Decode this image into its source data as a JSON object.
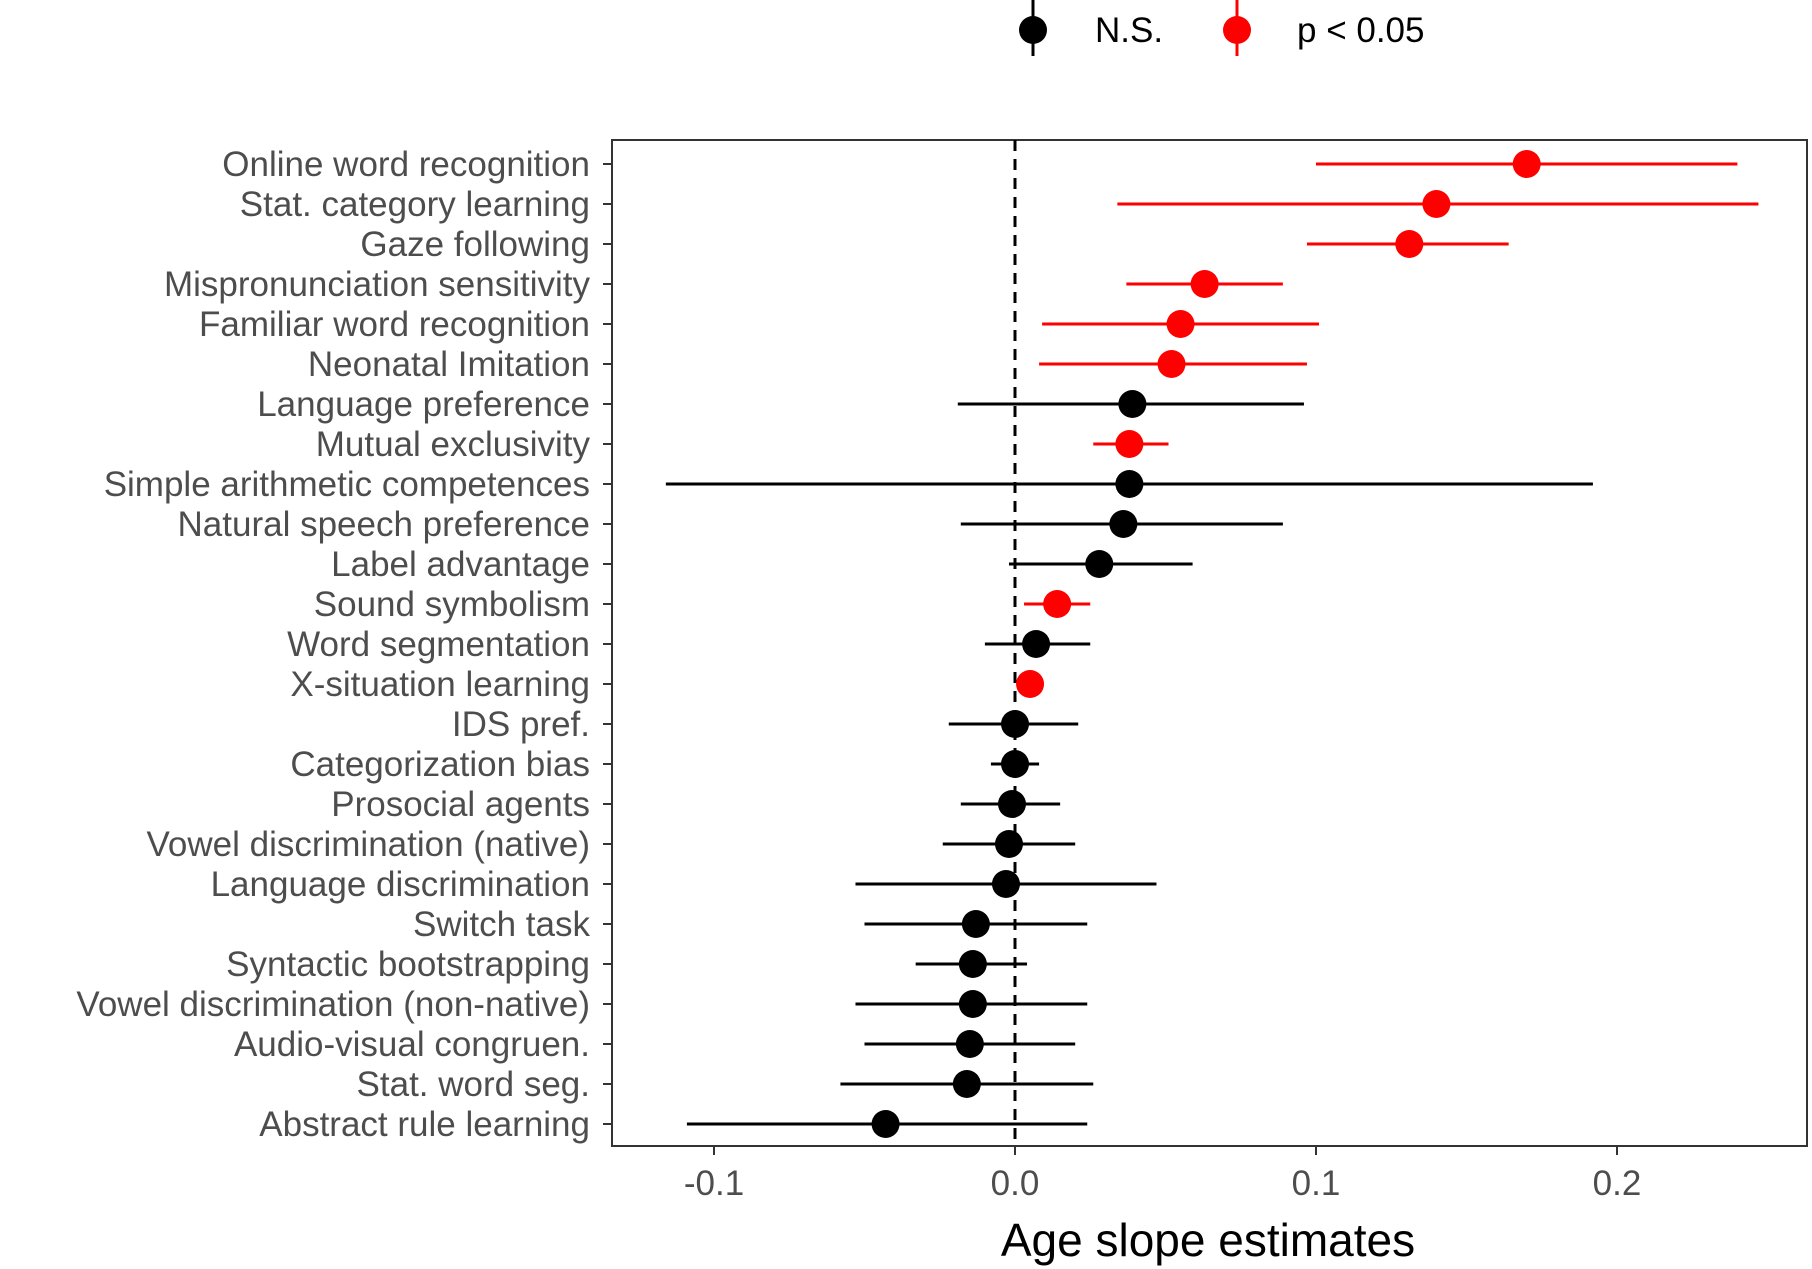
{
  "chart_data": {
    "type": "scatter",
    "subtype": "forest-plot-with-error-bars",
    "xlabel": "Age slope estimates",
    "ylabel": "",
    "xlim": [
      -0.135,
      0.265
    ],
    "x_ticks": [
      -0.1,
      0.0,
      0.1,
      0.2
    ],
    "x_tick_labels": [
      "-0.1",
      "0.0",
      "0.1",
      "0.2"
    ],
    "reference_line": {
      "x": 0.0,
      "style": "dashed",
      "color": "#000000"
    },
    "grid": false,
    "legend": {
      "position": "top-center",
      "items": [
        {
          "key": "ns",
          "label": "N.S.",
          "color": "#000000"
        },
        {
          "key": "sig",
          "label": "p < 0.05",
          "color": "#ff0000"
        }
      ]
    },
    "colors": {
      "ns": "#000000",
      "sig": "#ff0000"
    },
    "rows": [
      {
        "label": "Online word recognition",
        "estimate": 0.17,
        "ci_low": 0.1,
        "ci_high": 0.24,
        "group": "sig"
      },
      {
        "label": "Stat. category learning",
        "estimate": 0.14,
        "ci_low": 0.034,
        "ci_high": 0.247,
        "group": "sig"
      },
      {
        "label": "Gaze following",
        "estimate": 0.131,
        "ci_low": 0.097,
        "ci_high": 0.164,
        "group": "sig"
      },
      {
        "label": "Mispronunciation sensitivity",
        "estimate": 0.063,
        "ci_low": 0.037,
        "ci_high": 0.089,
        "group": "sig"
      },
      {
        "label": "Familiar word recognition",
        "estimate": 0.055,
        "ci_low": 0.009,
        "ci_high": 0.101,
        "group": "sig"
      },
      {
        "label": "Neonatal Imitation",
        "estimate": 0.052,
        "ci_low": 0.008,
        "ci_high": 0.097,
        "group": "sig"
      },
      {
        "label": "Language preference",
        "estimate": 0.039,
        "ci_low": -0.019,
        "ci_high": 0.096,
        "group": "ns"
      },
      {
        "label": "Mutual exclusivity",
        "estimate": 0.038,
        "ci_low": 0.026,
        "ci_high": 0.051,
        "group": "sig"
      },
      {
        "label": "Simple arithmetic competences",
        "estimate": 0.038,
        "ci_low": -0.116,
        "ci_high": 0.192,
        "group": "ns"
      },
      {
        "label": "Natural speech preference",
        "estimate": 0.036,
        "ci_low": -0.018,
        "ci_high": 0.089,
        "group": "ns"
      },
      {
        "label": "Label advantage",
        "estimate": 0.028,
        "ci_low": -0.002,
        "ci_high": 0.059,
        "group": "ns"
      },
      {
        "label": "Sound symbolism",
        "estimate": 0.014,
        "ci_low": 0.003,
        "ci_high": 0.025,
        "group": "sig"
      },
      {
        "label": "Word segmentation",
        "estimate": 0.007,
        "ci_low": -0.01,
        "ci_high": 0.025,
        "group": "ns"
      },
      {
        "label": "X-situation learning",
        "estimate": 0.005,
        "ci_low": 0.005,
        "ci_high": 0.005,
        "group": "sig"
      },
      {
        "label": "IDS pref.",
        "estimate": 0.0,
        "ci_low": -0.022,
        "ci_high": 0.021,
        "group": "ns"
      },
      {
        "label": "Categorization bias",
        "estimate": 0.0,
        "ci_low": -0.008,
        "ci_high": 0.008,
        "group": "ns"
      },
      {
        "label": "Prosocial agents",
        "estimate": -0.001,
        "ci_low": -0.018,
        "ci_high": 0.015,
        "group": "ns"
      },
      {
        "label": "Vowel discrimination (native)",
        "estimate": -0.002,
        "ci_low": -0.024,
        "ci_high": 0.02,
        "group": "ns"
      },
      {
        "label": "Language discrimination",
        "estimate": -0.003,
        "ci_low": -0.053,
        "ci_high": 0.047,
        "group": "ns"
      },
      {
        "label": "Switch task",
        "estimate": -0.013,
        "ci_low": -0.05,
        "ci_high": 0.024,
        "group": "ns"
      },
      {
        "label": "Syntactic bootstrapping",
        "estimate": -0.014,
        "ci_low": -0.033,
        "ci_high": 0.004,
        "group": "ns"
      },
      {
        "label": "Vowel discrimination (non-native)",
        "estimate": -0.014,
        "ci_low": -0.053,
        "ci_high": 0.024,
        "group": "ns"
      },
      {
        "label": "Audio-visual congruen.",
        "estimate": -0.015,
        "ci_low": -0.05,
        "ci_high": 0.02,
        "group": "ns"
      },
      {
        "label": "Stat. word seg.",
        "estimate": -0.016,
        "ci_low": -0.058,
        "ci_high": 0.026,
        "group": "ns"
      },
      {
        "label": "Abstract rule learning",
        "estimate": -0.043,
        "ci_low": -0.109,
        "ci_high": 0.024,
        "group": "ns"
      }
    ]
  }
}
